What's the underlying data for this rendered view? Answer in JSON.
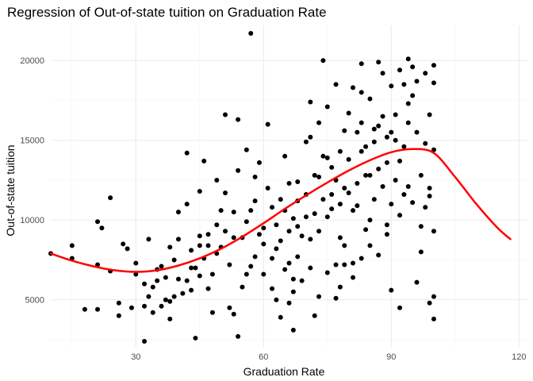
{
  "chart_data": {
    "type": "scatter",
    "title": "Regression of Out-of-state tuition on Graduation Rate",
    "xlabel": "Graduation Rate",
    "ylabel": "Out-of-state tuition",
    "xlim": [
      10,
      122
    ],
    "ylim": [
      2000,
      22200
    ],
    "x_major_ticks": [
      30,
      60,
      90,
      120
    ],
    "x_minor_ticks": [
      15,
      45,
      75,
      105
    ],
    "y_major_ticks": [
      5000,
      10000,
      15000,
      20000
    ],
    "y_minor_ticks": [
      2500,
      7500,
      12500,
      17500
    ],
    "x_tick_labels": [
      "30",
      "60",
      "90",
      "120"
    ],
    "y_tick_labels": [
      "5000",
      "10000",
      "15000",
      "20000"
    ],
    "grid": true,
    "point_color": "#000000",
    "fit_color": "#ff0000",
    "series": [
      {
        "type": "scatter",
        "points": [
          [
            10,
            7900
          ],
          [
            15,
            8400
          ],
          [
            15,
            7600
          ],
          [
            18,
            4400
          ],
          [
            21,
            4400
          ],
          [
            21,
            9900
          ],
          [
            21,
            7200
          ],
          [
            22,
            9500
          ],
          [
            24,
            6800
          ],
          [
            24,
            11400
          ],
          [
            26,
            4800
          ],
          [
            26,
            4000
          ],
          [
            27,
            8500
          ],
          [
            28,
            8200
          ],
          [
            29,
            4500
          ],
          [
            30,
            6600
          ],
          [
            32,
            6000
          ],
          [
            32,
            4600
          ],
          [
            32,
            2400
          ],
          [
            33,
            5200
          ],
          [
            34,
            4200
          ],
          [
            34,
            5800
          ],
          [
            35,
            6200
          ],
          [
            36,
            4600
          ],
          [
            37,
            5000
          ],
          [
            38,
            3800
          ],
          [
            38,
            4900
          ],
          [
            39,
            5200
          ],
          [
            39,
            7500
          ],
          [
            40,
            10500
          ],
          [
            42,
            11000
          ],
          [
            42,
            14200
          ],
          [
            43,
            5600
          ],
          [
            43,
            7000
          ],
          [
            44,
            2600
          ],
          [
            45,
            9000
          ],
          [
            46,
            13700
          ],
          [
            47,
            8400
          ],
          [
            48,
            4200
          ],
          [
            49,
            9700
          ],
          [
            50,
            10600
          ],
          [
            51,
            9300
          ],
          [
            51,
            16600
          ],
          [
            52,
            4500
          ],
          [
            53,
            4100
          ],
          [
            54,
            2700
          ],
          [
            54,
            16300
          ],
          [
            55,
            8900
          ],
          [
            56,
            6600
          ],
          [
            57,
            7100
          ],
          [
            57,
            21700
          ],
          [
            58,
            11200
          ],
          [
            59,
            9100
          ],
          [
            60,
            6600
          ],
          [
            60,
            8500
          ],
          [
            61,
            16000
          ],
          [
            62,
            5700
          ],
          [
            63,
            9700
          ],
          [
            64,
            3900
          ],
          [
            64,
            11300
          ],
          [
            65,
            10600
          ],
          [
            66,
            7300
          ],
          [
            66,
            4800
          ],
          [
            67,
            3100
          ],
          [
            67,
            6300
          ],
          [
            68,
            9600
          ],
          [
            68,
            12400
          ],
          [
            70,
            14900
          ],
          [
            71,
            15200
          ],
          [
            72,
            4000
          ],
          [
            73,
            12700
          ],
          [
            74,
            20000
          ],
          [
            75,
            17100
          ],
          [
            76,
            11600
          ],
          [
            77,
            7200
          ],
          [
            78,
            5800
          ],
          [
            78,
            11000
          ],
          [
            79,
            15600
          ],
          [
            80,
            11700
          ],
          [
            81,
            7300
          ],
          [
            82,
            15500
          ],
          [
            83,
            19800
          ],
          [
            83,
            18000
          ],
          [
            84,
            12800
          ],
          [
            85,
            10000
          ],
          [
            86,
            14900
          ],
          [
            87,
            15900
          ],
          [
            88,
            19200
          ],
          [
            89,
            9700
          ],
          [
            90,
            11000
          ],
          [
            90,
            5600
          ],
          [
            91,
            15000
          ],
          [
            92,
            4500
          ],
          [
            92,
            19400
          ],
          [
            93,
            18500
          ],
          [
            94,
            12100
          ],
          [
            94,
            20100
          ],
          [
            95,
            17800
          ],
          [
            96,
            6100
          ],
          [
            97,
            8000
          ],
          [
            98,
            14800
          ],
          [
            98,
            19200
          ],
          [
            99,
            4800
          ],
          [
            99,
            12000
          ],
          [
            100,
            18600
          ],
          [
            100,
            9300
          ],
          [
            100,
            5200
          ],
          [
            100,
            3800
          ],
          [
            100,
            14400
          ],
          [
            100,
            19700
          ],
          [
            52,
            7200
          ],
          [
            53,
            10500
          ],
          [
            49,
            12500
          ],
          [
            45,
            11800
          ],
          [
            40,
            8800
          ],
          [
            38,
            8300
          ],
          [
            36,
            7100
          ],
          [
            37,
            6400
          ],
          [
            47,
            5700
          ],
          [
            48,
            6600
          ],
          [
            55,
            5800
          ],
          [
            56,
            9900
          ],
          [
            58,
            7700
          ],
          [
            59,
            13600
          ],
          [
            61,
            12000
          ],
          [
            62,
            10800
          ],
          [
            63,
            8200
          ],
          [
            65,
            14000
          ],
          [
            66,
            12300
          ],
          [
            67,
            10100
          ],
          [
            68,
            7700
          ],
          [
            69,
            9000
          ],
          [
            70,
            11600
          ],
          [
            71,
            8800
          ],
          [
            72,
            10400
          ],
          [
            73,
            9300
          ],
          [
            74,
            14000
          ],
          [
            75,
            10200
          ],
          [
            76,
            13300
          ],
          [
            77,
            12500
          ],
          [
            78,
            14300
          ],
          [
            79,
            8400
          ],
          [
            80,
            16700
          ],
          [
            81,
            10600
          ],
          [
            82,
            12300
          ],
          [
            83,
            16100
          ],
          [
            84,
            9400
          ],
          [
            85,
            17600
          ],
          [
            86,
            11300
          ],
          [
            87,
            13200
          ],
          [
            88,
            16500
          ],
          [
            89,
            13600
          ],
          [
            90,
            15500
          ],
          [
            91,
            12500
          ],
          [
            92,
            10300
          ],
          [
            93,
            14600
          ],
          [
            94,
            16100
          ],
          [
            95,
            11100
          ],
          [
            96,
            18700
          ],
          [
            97,
            12800
          ],
          [
            98,
            10800
          ],
          [
            99,
            16600
          ],
          [
            99,
            11500
          ],
          [
            56,
            14400
          ],
          [
            58,
            12700
          ],
          [
            54,
            13100
          ],
          [
            51,
            11700
          ],
          [
            50,
            8300
          ],
          [
            46,
            7600
          ],
          [
            44,
            7000
          ],
          [
            42,
            6200
          ],
          [
            41,
            5400
          ],
          [
            43,
            8100
          ],
          [
            45,
            6500
          ],
          [
            47,
            9100
          ],
          [
            49,
            7900
          ],
          [
            53,
            8900
          ],
          [
            57,
            10600
          ],
          [
            60,
            9500
          ],
          [
            62,
            7600
          ],
          [
            64,
            8700
          ],
          [
            66,
            9300
          ],
          [
            68,
            11200
          ],
          [
            70,
            10200
          ],
          [
            72,
            12800
          ],
          [
            74,
            11300
          ],
          [
            76,
            10700
          ],
          [
            78,
            8900
          ],
          [
            80,
            13800
          ],
          [
            82,
            10900
          ],
          [
            84,
            14600
          ],
          [
            86,
            15700
          ],
          [
            88,
            12100
          ],
          [
            90,
            18400
          ],
          [
            92,
            13700
          ],
          [
            94,
            17300
          ],
          [
            96,
            15500
          ],
          [
            71,
            17400
          ],
          [
            73,
            16100
          ],
          [
            75,
            13900
          ],
          [
            77,
            18500
          ],
          [
            79,
            12000
          ],
          [
            81,
            18300
          ],
          [
            83,
            14300
          ],
          [
            85,
            12800
          ],
          [
            87,
            19900
          ],
          [
            89,
            15200
          ],
          [
            91,
            16600
          ],
          [
            93,
            11600
          ],
          [
            95,
            19600
          ],
          [
            97,
            9600
          ],
          [
            63,
            5000
          ],
          [
            65,
            6900
          ],
          [
            67,
            5500
          ],
          [
            69,
            6200
          ],
          [
            71,
            7000
          ],
          [
            73,
            5200
          ],
          [
            75,
            6700
          ],
          [
            77,
            5100
          ],
          [
            79,
            7200
          ],
          [
            81,
            6400
          ],
          [
            83,
            7600
          ],
          [
            85,
            8400
          ],
          [
            87,
            7800
          ],
          [
            89,
            9100
          ],
          [
            35,
            6900
          ],
          [
            40,
            6300
          ],
          [
            33,
            8800
          ],
          [
            30,
            7300
          ],
          [
            45,
            8400
          ]
        ]
      },
      {
        "type": "line",
        "name": "",
        "points": [
          [
            10,
            7900
          ],
          [
            15,
            7450
          ],
          [
            20,
            7100
          ],
          [
            25,
            6850
          ],
          [
            30,
            6750
          ],
          [
            35,
            6850
          ],
          [
            40,
            7150
          ],
          [
            45,
            7600
          ],
          [
            50,
            8200
          ],
          [
            55,
            8950
          ],
          [
            60,
            9800
          ],
          [
            65,
            10700
          ],
          [
            70,
            11550
          ],
          [
            75,
            12350
          ],
          [
            80,
            13100
          ],
          [
            85,
            13750
          ],
          [
            90,
            14250
          ],
          [
            95,
            14450
          ],
          [
            100,
            14200
          ],
          [
            105,
            12700
          ],
          [
            110,
            11000
          ],
          [
            115,
            9500
          ],
          [
            118,
            8800
          ]
        ]
      }
    ]
  }
}
